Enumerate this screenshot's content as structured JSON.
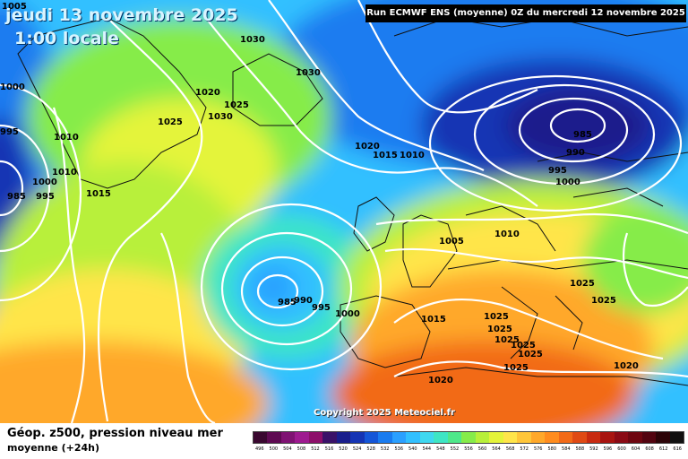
{
  "header": {
    "date": "jeudi 13 novembre 2025",
    "time": "1:00 locale",
    "run_info": "Run ECMWF ENS (moyenne) 0Z du mercredi 12 novembre 2025"
  },
  "copyright": "Copyright 2025 Meteociel.fr",
  "legend": {
    "title": "Géop. z500, pression niveau mer",
    "subtitle": "moyenne   (+24h)",
    "ticks": [
      "496",
      "500",
      "504",
      "508",
      "512",
      "516",
      "520",
      "524",
      "528",
      "532",
      "536",
      "540",
      "544",
      "548",
      "552",
      "556",
      "560",
      "564",
      "568",
      "572",
      "576",
      "580",
      "584",
      "588",
      "592",
      "596",
      "600",
      "604",
      "608",
      "612",
      "616"
    ],
    "colors": [
      "#3a0830",
      "#5e0a52",
      "#7f1273",
      "#9e1a90",
      "#8d0f6a",
      "#3a1268",
      "#1a1e8c",
      "#1534b4",
      "#1556d8",
      "#1a7cf0",
      "#2ba0ff",
      "#32c0ff",
      "#3fd8f0",
      "#3ee6c4",
      "#4ee88a",
      "#86ec4a",
      "#b8f03a",
      "#e4f43a",
      "#ffe54a",
      "#ffc63a",
      "#ffa82a",
      "#ff8c1e",
      "#f26a18",
      "#e04a14",
      "#c82a10",
      "#a81410",
      "#8a0a14",
      "#6e0610",
      "#520410",
      "#2c0408",
      "#101010"
    ]
  },
  "isobar_labels": [
    {
      "text": "1030"
    },
    {
      "text": "1030"
    },
    {
      "text": "1020"
    },
    {
      "text": "1025"
    },
    {
      "text": "1030"
    },
    {
      "text": "1025"
    },
    {
      "text": "1010"
    },
    {
      "text": "1010"
    },
    {
      "text": "1000"
    },
    {
      "text": "1015"
    },
    {
      "text": "1005"
    },
    {
      "text": "1000"
    },
    {
      "text": "995"
    },
    {
      "text": "995"
    },
    {
      "text": "985"
    },
    {
      "text": "1020"
    },
    {
      "text": "1015"
    },
    {
      "text": "1010"
    },
    {
      "text": "985"
    },
    {
      "text": "990"
    },
    {
      "text": "995"
    },
    {
      "text": "1000"
    },
    {
      "text": "1005"
    },
    {
      "text": "1010"
    },
    {
      "text": "985"
    },
    {
      "text": "990"
    },
    {
      "text": "995"
    },
    {
      "text": "1000"
    },
    {
      "text": "1015"
    },
    {
      "text": "1025"
    },
    {
      "text": "1025"
    },
    {
      "text": "1025"
    },
    {
      "text": "1025"
    },
    {
      "text": "1025"
    },
    {
      "text": "1025"
    },
    {
      "text": "1025"
    },
    {
      "text": "1025"
    },
    {
      "text": "1020"
    },
    {
      "text": "1020"
    }
  ]
}
